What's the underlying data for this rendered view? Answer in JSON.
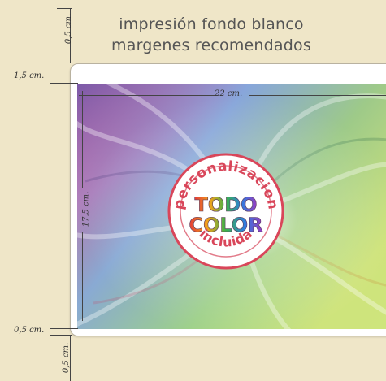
{
  "title": {
    "line1": "impresión fondo blanco",
    "line2": "margenes recomendados"
  },
  "dimensions": {
    "top_margin": "0,5 cm.",
    "left_margin": "1,5 cm.",
    "bottom_left_margin": "0,5 cm.",
    "bottom_margin": "0,5 cm.",
    "width": "22 cm.",
    "height": "17,5 cm."
  },
  "badge": {
    "top_text": "personalizacion",
    "line1": "TODO",
    "line2": "COLOR",
    "bottom_text": "incluida",
    "ring_color": "#d9465a",
    "fill_color": "#ffffff"
  },
  "colors": {
    "background": "#efe6c8",
    "card": "#ffffff"
  }
}
